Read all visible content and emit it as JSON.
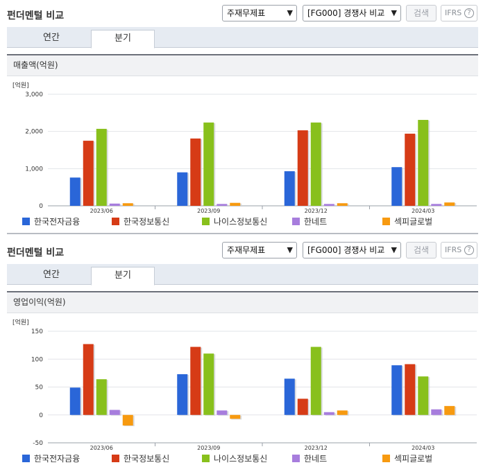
{
  "panels": [
    {
      "title": "펀더멘털 비교",
      "select_statement": "주재무제표",
      "select_compare": "[FG000] 경쟁사 비교",
      "search_label": "검색",
      "ifrs_label": "IFRS",
      "help_glyph": "?",
      "tabs": [
        "연간",
        "분기"
      ],
      "active_tab": "분기",
      "metric_label": "매출액(억원)"
    },
    {
      "title": "펀더멘털 비교",
      "select_statement": "주재무제표",
      "select_compare": "[FG000] 경쟁사 비교",
      "search_label": "검색",
      "ifrs_label": "IFRS",
      "help_glyph": "?",
      "tabs": [
        "연간",
        "분기"
      ],
      "active_tab": "분기",
      "metric_label": "영업이익(억원)"
    }
  ],
  "series_colors": [
    "#2a66d8",
    "#d63b16",
    "#88c01c",
    "#a77ddd",
    "#f79a10"
  ],
  "chart_data": [
    {
      "type": "bar",
      "unit_label": "[억원]",
      "categories": [
        "2023/06",
        "2023/09",
        "2023/12",
        "2024/03"
      ],
      "ylim": [
        0,
        3000
      ],
      "yticks": [
        0,
        1000,
        2000,
        3000
      ],
      "ytick_labels": [
        "0",
        "1,000",
        "2,000",
        "3,000"
      ],
      "grid": true,
      "legend_position": "bottom",
      "series": [
        {
          "name": "한국전자금융",
          "values": [
            760,
            900,
            930,
            1040
          ]
        },
        {
          "name": "한국정보통신",
          "values": [
            1750,
            1810,
            2030,
            1940
          ]
        },
        {
          "name": "나이스정보통신",
          "values": [
            2070,
            2240,
            2240,
            2310
          ]
        },
        {
          "name": "한네트",
          "values": [
            60,
            50,
            50,
            50
          ]
        },
        {
          "name": "섹피글로벌",
          "values": [
            70,
            80,
            70,
            90
          ]
        }
      ]
    },
    {
      "type": "bar",
      "unit_label": "[억원]",
      "categories": [
        "2023/06",
        "2023/09",
        "2023/12",
        "2024/03"
      ],
      "ylim": [
        -50,
        150
      ],
      "yticks": [
        -50,
        0,
        50,
        100,
        150
      ],
      "ytick_labels": [
        "-50",
        "0",
        "50",
        "100",
        "150"
      ],
      "grid": true,
      "legend_position": "bottom",
      "series": [
        {
          "name": "한국전자금융",
          "values": [
            49,
            73,
            65,
            89
          ]
        },
        {
          "name": "한국정보통신",
          "values": [
            127,
            122,
            29,
            91
          ]
        },
        {
          "name": "나이스정보통신",
          "values": [
            64,
            110,
            122,
            69
          ]
        },
        {
          "name": "한네트",
          "values": [
            9,
            8,
            5,
            10
          ]
        },
        {
          "name": "섹피글로벌",
          "values": [
            -19,
            -7,
            8,
            16
          ]
        }
      ]
    }
  ]
}
